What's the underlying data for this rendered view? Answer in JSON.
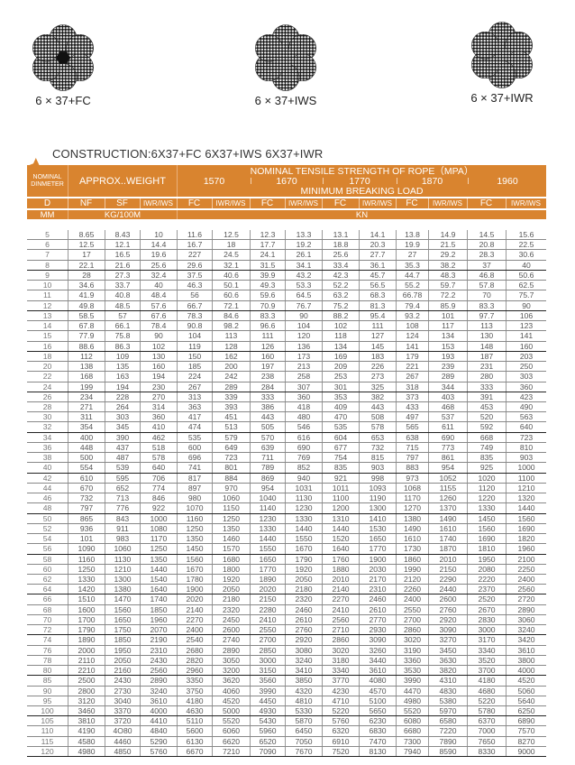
{
  "ropes": [
    {
      "label": "6 × 37+FC",
      "core": "fiber-core"
    },
    {
      "label": "6 × 37+IWS",
      "core": "steel-strand-core"
    },
    {
      "label": "6 × 37+IWR",
      "core": "steel-rope-core"
    }
  ],
  "construction_title": "CONSTRUCTION:6X37+FC 6X37+IWS 6X37+IWR",
  "colors": {
    "header": "#D9842F",
    "header_text": "#FFFFFF"
  },
  "header": {
    "nominal_diameter": [
      "NOMINAL",
      "DINMETER"
    ],
    "approx_weight": "APPROX..WEIGHT",
    "tensile_title": "NOMINAL TENSILE STRENGTH OF ROPE（MPA）",
    "strengths": [
      "1570",
      "1670",
      "1770",
      "1870",
      "1960"
    ],
    "min_breaking_load": "MINIMUM BREAKING LOAD",
    "columns": [
      "D",
      "NF",
      "SF",
      "IWR/IWS",
      "FC",
      "IWR/IWS",
      "FC",
      "IWR/IWS",
      "FC",
      "IWR/IWS",
      "FC",
      "IWR/IWS",
      "FC",
      "IWR/IWS"
    ],
    "unit_d": "MM",
    "unit_weight": "KG/100M",
    "unit_load": "KN"
  },
  "table": {
    "rows": [
      [
        "5",
        "8.65",
        "8.43",
        "10",
        "11.6",
        "12.5",
        "12.3",
        "13.3",
        "13.1",
        "14.1",
        "13.8",
        "14.9",
        "14.5",
        "15.6"
      ],
      [
        "6",
        "12.5",
        "12.1",
        "14.4",
        "16.7",
        "18",
        "17.7",
        "19.2",
        "18.8",
        "20.3",
        "19.9",
        "21.5",
        "20.8",
        "22.5"
      ],
      [
        "7",
        "17",
        "16.5",
        "19.6",
        "227",
        "24.5",
        "24.1",
        "26.1",
        "25.6",
        "27.7",
        "27",
        "29.2",
        "28.3",
        "30.6"
      ],
      [
        "8",
        "22.1",
        "21.6",
        "25.6",
        "29.6",
        "32.1",
        "31.5",
        "34.1",
        "33.4",
        "36.1",
        "35.3",
        "38.2",
        "37",
        "40"
      ],
      [
        "9",
        "28",
        "27.3",
        "32.4",
        "37.5",
        "40.6",
        "39.9",
        "43.2",
        "42.3",
        "45.7",
        "44.7",
        "48.3",
        "46.8",
        "50.6"
      ],
      [
        "10",
        "34.6",
        "33.7",
        "40",
        "46.3",
        "50.1",
        "49.3",
        "53.3",
        "52.2",
        "56.5",
        "55.2",
        "59.7",
        "57.8",
        "62.5"
      ],
      [
        "11",
        "41.9",
        "40.8",
        "48.4",
        "56",
        "60.6",
        "59.6",
        "64.5",
        "63.2",
        "68.3",
        "66.78",
        "72.2",
        "70",
        "75.7"
      ],
      [
        "12",
        "49.8",
        "48.5",
        "57.6",
        "66.7",
        "72.1",
        "70.9",
        "76.7",
        "75.2",
        "81.3",
        "79.4",
        "85.9",
        "83.3",
        "90"
      ],
      [
        "13",
        "58.5",
        "57",
        "67.6",
        "78.3",
        "84.6",
        "83.3",
        "90",
        "88.2",
        "95.4",
        "93.2",
        "101",
        "97.7",
        "106"
      ],
      [
        "14",
        "67.8",
        "66.1",
        "78.4",
        "90.8",
        "98.2",
        "96.6",
        "104",
        "102",
        "111",
        "108",
        "117",
        "113",
        "123"
      ],
      [
        "15",
        "77.9",
        "75.8",
        "90",
        "104",
        "113",
        "111",
        "120",
        "118",
        "127",
        "124",
        "134",
        "130",
        "141"
      ],
      [
        "16",
        "88.6",
        "86.3",
        "102",
        "119",
        "128",
        "126",
        "136",
        "134",
        "145",
        "141",
        "153",
        "148",
        "160"
      ],
      [
        "18",
        "112",
        "109",
        "130",
        "150",
        "162",
        "160",
        "173",
        "169",
        "183",
        "179",
        "193",
        "187",
        "203"
      ],
      [
        "20",
        "138",
        "135",
        "160",
        "185",
        "200",
        "197",
        "213",
        "209",
        "226",
        "221",
        "239",
        "231",
        "250"
      ],
      [
        "22",
        "168",
        "163",
        "194",
        "224",
        "242",
        "238",
        "258",
        "253",
        "273",
        "267",
        "289",
        "280",
        "303"
      ],
      [
        "24",
        "199",
        "194",
        "230",
        "267",
        "289",
        "284",
        "307",
        "301",
        "325",
        "318",
        "344",
        "333",
        "360"
      ],
      [
        "26",
        "234",
        "228",
        "270",
        "313",
        "339",
        "333",
        "360",
        "353",
        "382",
        "373",
        "403",
        "391",
        "423"
      ],
      [
        "28",
        "271",
        "264",
        "314",
        "363",
        "393",
        "386",
        "418",
        "409",
        "443",
        "433",
        "468",
        "453",
        "490"
      ],
      [
        "30",
        "311",
        "303",
        "360",
        "417",
        "451",
        "443",
        "480",
        "470",
        "508",
        "497",
        "537",
        "520",
        "563"
      ],
      [
        "32",
        "354",
        "345",
        "410",
        "474",
        "513",
        "505",
        "546",
        "535",
        "578",
        "565",
        "611",
        "592",
        "640"
      ],
      [
        "34",
        "400",
        "390",
        "462",
        "535",
        "579",
        "570",
        "616",
        "604",
        "653",
        "638",
        "690",
        "668",
        "723"
      ],
      [
        "36",
        "448",
        "437",
        "518",
        "600",
        "649",
        "639",
        "690",
        "677",
        "732",
        "715",
        "773",
        "749",
        "810"
      ],
      [
        "38",
        "500",
        "487",
        "578",
        "696",
        "723",
        "711",
        "769",
        "754",
        "815",
        "797",
        "861",
        "835",
        "903"
      ],
      [
        "40",
        "554",
        "539",
        "640",
        "741",
        "801",
        "789",
        "852",
        "835",
        "903",
        "883",
        "954",
        "925",
        "1000"
      ],
      [
        "42",
        "610",
        "595",
        "706",
        "817",
        "884",
        "869",
        "940",
        "921",
        "998",
        "973",
        "1052",
        "1020",
        "1100"
      ],
      [
        "44",
        "670",
        "652",
        "774",
        "897",
        "970",
        "954",
        "1031",
        "1011",
        "1093",
        "1068",
        "1155",
        "1120",
        "1210"
      ],
      [
        "46",
        "732",
        "713",
        "846",
        "980",
        "1060",
        "1040",
        "1130",
        "1100",
        "1190",
        "1170",
        "1260",
        "1220",
        "1320"
      ],
      [
        "48",
        "797",
        "776",
        "922",
        "1070",
        "1150",
        "1140",
        "1230",
        "1200",
        "1300",
        "1270",
        "1370",
        "1330",
        "1440"
      ],
      [
        "50",
        "865",
        "843",
        "1000",
        "1160",
        "1250",
        "1230",
        "1330",
        "1310",
        "1410",
        "1380",
        "1490",
        "1450",
        "1560"
      ],
      [
        "52",
        "936",
        "911",
        "1080",
        "1250",
        "1350",
        "1330",
        "1440",
        "1440",
        "1530",
        "1490",
        "1610",
        "1560",
        "1690"
      ],
      [
        "54",
        "101",
        "983",
        "1170",
        "1350",
        "1460",
        "1440",
        "1550",
        "1520",
        "1650",
        "1610",
        "1740",
        "1690",
        "1820"
      ],
      [
        "56",
        "1090",
        "1060",
        "1250",
        "1450",
        "1570",
        "1550",
        "1670",
        "1640",
        "1770",
        "1730",
        "1870",
        "1810",
        "1960"
      ],
      [
        "58",
        "1160",
        "1130",
        "1350",
        "1560",
        "1680",
        "1650",
        "1790",
        "1760",
        "1900",
        "1860",
        "2010",
        "1950",
        "2100"
      ],
      [
        "60",
        "1250",
        "1210",
        "1440",
        "1670",
        "1800",
        "1770",
        "1920",
        "1880",
        "2030",
        "1990",
        "2150",
        "2080",
        "2250"
      ],
      [
        "62",
        "1330",
        "1300",
        "1540",
        "1780",
        "1920",
        "1890",
        "2050",
        "2010",
        "2170",
        "2120",
        "2290",
        "2220",
        "2400"
      ],
      [
        "64",
        "1420",
        "1380",
        "1640",
        "1900",
        "2050",
        "2020",
        "2180",
        "2140",
        "2310",
        "2260",
        "2440",
        "2370",
        "2560"
      ],
      [
        "66",
        "1510",
        "1470",
        "1740",
        "2020",
        "2180",
        "2150",
        "2320",
        "2270",
        "2460",
        "2400",
        "2600",
        "2520",
        "2720"
      ],
      [
        "68",
        "1600",
        "1560",
        "1850",
        "2140",
        "2320",
        "2280",
        "2460",
        "2410",
        "2610",
        "2550",
        "2760",
        "2670",
        "2890"
      ],
      [
        "70",
        "1700",
        "1650",
        "1960",
        "2270",
        "2450",
        "2410",
        "2610",
        "2560",
        "2770",
        "2700",
        "2920",
        "2830",
        "3060"
      ],
      [
        "72",
        "1790",
        "1750",
        "2070",
        "2400",
        "2600",
        "2550",
        "2760",
        "2710",
        "2930",
        "2860",
        "3090",
        "3000",
        "3240"
      ],
      [
        "74",
        "1890",
        "1850",
        "2190",
        "2540",
        "2740",
        "2700",
        "2920",
        "2860",
        "3090",
        "3020",
        "3270",
        "3170",
        "3420"
      ],
      [
        "76",
        "2000",
        "1950",
        "2310",
        "2680",
        "2890",
        "2850",
        "3080",
        "3020",
        "3260",
        "3190",
        "3450",
        "3340",
        "3610"
      ],
      [
        "78",
        "2110",
        "2050",
        "2430",
        "2820",
        "3050",
        "3000",
        "3240",
        "3180",
        "3440",
        "3360",
        "3630",
        "3520",
        "3800"
      ],
      [
        "80",
        "2210",
        "2160",
        "2560",
        "2960",
        "3200",
        "3150",
        "3410",
        "3340",
        "3610",
        "3530",
        "3820",
        "3700",
        "4000"
      ],
      [
        "85",
        "2500",
        "2430",
        "2890",
        "3350",
        "3620",
        "3560",
        "3850",
        "3770",
        "4080",
        "3990",
        "4310",
        "4180",
        "4520"
      ],
      [
        "90",
        "2800",
        "2730",
        "3240",
        "3750",
        "4060",
        "3990",
        "4320",
        "4230",
        "4570",
        "4470",
        "4830",
        "4680",
        "5060"
      ],
      [
        "95",
        "3120",
        "3040",
        "3610",
        "4180",
        "4520",
        "4450",
        "4810",
        "4710",
        "5100",
        "4980",
        "5380",
        "5220",
        "5640"
      ],
      [
        "100",
        "3460",
        "3370",
        "4000",
        "4630",
        "5000",
        "4930",
        "5330",
        "5220",
        "5650",
        "5520",
        "5970",
        "5780",
        "6250"
      ],
      [
        "105",
        "3810",
        "3720",
        "4410",
        "5110",
        "5520",
        "5430",
        "5870",
        "5760",
        "6230",
        "6080",
        "6580",
        "6370",
        "6890"
      ],
      [
        "110",
        "4190",
        "4O80",
        "4840",
        "5600",
        "6060",
        "5960",
        "6450",
        "6320",
        "6830",
        "6680",
        "7220",
        "7000",
        "7570"
      ],
      [
        "115",
        "4580",
        "4460",
        "5290",
        "6130",
        "6620",
        "6520",
        "7050",
        "6910",
        "7470",
        "7300",
        "7890",
        "7650",
        "8270"
      ],
      [
        "120",
        "4980",
        "4850",
        "5760",
        "6670",
        "7210",
        "7090",
        "7670",
        "7520",
        "8130",
        "7940",
        "8590",
        "8330",
        "9000"
      ]
    ]
  }
}
